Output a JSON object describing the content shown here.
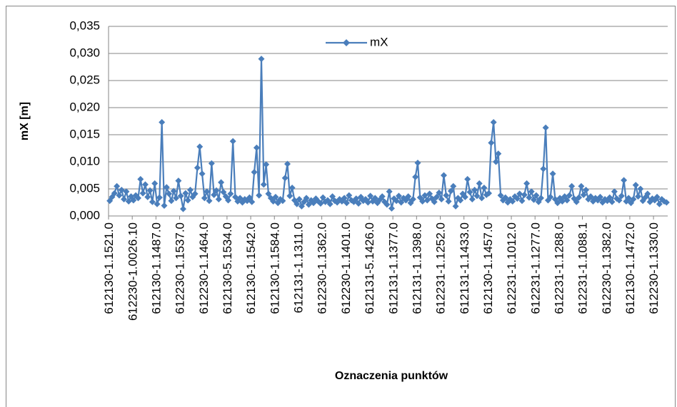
{
  "chart_data": {
    "type": "line",
    "y_label": "mX [m]",
    "x_label": "Oznaczenia punktów",
    "categories": [
      "612130-1.1521.0",
      null,
      null,
      null,
      null,
      null,
      null,
      null,
      null,
      null,
      "612230-1.0026.10",
      null,
      null,
      null,
      null,
      null,
      null,
      null,
      null,
      null,
      "612130-1.1487.0",
      null,
      null,
      null,
      null,
      null,
      null,
      null,
      null,
      null,
      "612230-1.1537.0",
      null,
      null,
      null,
      null,
      null,
      null,
      null,
      null,
      null,
      "612230-1.1464.0",
      null,
      null,
      null,
      null,
      null,
      null,
      null,
      null,
      null,
      "612130-5.1534.0",
      null,
      null,
      null,
      null,
      null,
      null,
      null,
      null,
      null,
      "612130-1.1542.0",
      null,
      null,
      null,
      null,
      null,
      null,
      null,
      null,
      null,
      "612130-1.1584.0",
      null,
      null,
      null,
      null,
      null,
      null,
      null,
      null,
      null,
      "612131-1.1311.0",
      null,
      null,
      null,
      null,
      null,
      null,
      null,
      null,
      null,
      "612230-1.1362.0",
      null,
      null,
      null,
      null,
      null,
      null,
      null,
      null,
      null,
      "612230-1.1401.0",
      null,
      null,
      null,
      null,
      null,
      null,
      null,
      null,
      null,
      "612131-5.1426.0",
      null,
      null,
      null,
      null,
      null,
      null,
      null,
      null,
      null,
      "612131-1.1377.0",
      null,
      null,
      null,
      null,
      null,
      null,
      null,
      null,
      null,
      "612131-1.1398.0",
      null,
      null,
      null,
      null,
      null,
      null,
      null,
      null,
      null,
      "612231-1.1252.0",
      null,
      null,
      null,
      null,
      null,
      null,
      null,
      null,
      null,
      "612131-1.1433.0",
      null,
      null,
      null,
      null,
      null,
      null,
      null,
      null,
      null,
      "612130-1.1457.0",
      null,
      null,
      null,
      null,
      null,
      null,
      null,
      null,
      null,
      "612231-1.1012.0",
      null,
      null,
      null,
      null,
      null,
      null,
      null,
      null,
      null,
      "612231-1.1277.0",
      null,
      null,
      null,
      null,
      null,
      null,
      null,
      null,
      null,
      "612231-1.1288.0",
      null,
      null,
      null,
      null,
      null,
      null,
      null,
      null,
      null,
      "612231-1.1088.1",
      null,
      null,
      null,
      null,
      null,
      null,
      null,
      null,
      null,
      "612230-1.1382.0",
      null,
      null,
      null,
      null,
      null,
      null,
      null,
      null,
      null,
      "612130-1.1472.0",
      null,
      null,
      null,
      null,
      null,
      null,
      null,
      null,
      null,
      "612230-1.1330.0",
      null,
      null,
      null,
      null,
      null
    ],
    "series": [
      {
        "name": "mX",
        "color": "#4a7ebb",
        "values": [
          0.0028,
          0.0035,
          0.0042,
          0.0055,
          0.0038,
          0.0048,
          0.0031,
          0.0045,
          0.0027,
          0.0036,
          0.0029,
          0.0038,
          0.0033,
          0.0068,
          0.0042,
          0.0058,
          0.0035,
          0.0047,
          0.0026,
          0.006,
          0.0022,
          0.0034,
          0.0173,
          0.0019,
          0.0053,
          0.0041,
          0.0028,
          0.0046,
          0.0033,
          0.0065,
          0.0037,
          0.0013,
          0.0042,
          0.0029,
          0.0048,
          0.0035,
          0.0041,
          0.0089,
          0.0128,
          0.0078,
          0.0033,
          0.0045,
          0.0028,
          0.0097,
          0.0039,
          0.0047,
          0.0031,
          0.0062,
          0.0044,
          0.0036,
          0.0029,
          0.0041,
          0.0138,
          0.0035,
          0.0027,
          0.0033,
          0.0025,
          0.0031,
          0.0028,
          0.0034,
          0.0026,
          0.0081,
          0.0126,
          0.0038,
          0.029,
          0.0058,
          0.0095,
          0.0041,
          0.0033,
          0.0027,
          0.0035,
          0.0024,
          0.0031,
          0.0028,
          0.007,
          0.0096,
          0.0037,
          0.0052,
          0.0029,
          0.0022,
          0.0031,
          0.0018,
          0.0026,
          0.0033,
          0.0021,
          0.0029,
          0.0024,
          0.0032,
          0.0027,
          0.0023,
          0.0034,
          0.0026,
          0.0029,
          0.0022,
          0.0036,
          0.0028,
          0.0025,
          0.0031,
          0.0027,
          0.0033,
          0.0024,
          0.0038,
          0.0029,
          0.0026,
          0.0032,
          0.0023,
          0.0035,
          0.0028,
          0.0031,
          0.0025,
          0.0037,
          0.0027,
          0.0033,
          0.0024,
          0.003,
          0.0036,
          0.0026,
          0.0021,
          0.0045,
          0.0014,
          0.0032,
          0.0028,
          0.0037,
          0.0025,
          0.0033,
          0.0029,
          0.0036,
          0.0024,
          0.0031,
          0.0072,
          0.0098,
          0.0034,
          0.0027,
          0.0038,
          0.0029,
          0.0041,
          0.0032,
          0.0026,
          0.0035,
          0.0043,
          0.0031,
          0.0075,
          0.0038,
          0.0027,
          0.0046,
          0.0055,
          0.0018,
          0.0033,
          0.0029,
          0.0041,
          0.0035,
          0.0068,
          0.0044,
          0.0031,
          0.0048,
          0.0037,
          0.006,
          0.0033,
          0.0052,
          0.0039,
          0.0042,
          0.0135,
          0.0173,
          0.01,
          0.0115,
          0.0038,
          0.0029,
          0.0034,
          0.0025,
          0.0031,
          0.0027,
          0.0036,
          0.0032,
          0.0041,
          0.0028,
          0.0039,
          0.006,
          0.0034,
          0.0045,
          0.003,
          0.0038,
          0.0026,
          0.0033,
          0.0087,
          0.0163,
          0.0029,
          0.0035,
          0.0078,
          0.0031,
          0.0024,
          0.0033,
          0.0027,
          0.0036,
          0.0029,
          0.0038,
          0.0055,
          0.0032,
          0.0026,
          0.0034,
          0.0055,
          0.0039,
          0.0048,
          0.0031,
          0.0036,
          0.0027,
          0.0033,
          0.0029,
          0.0035,
          0.0025,
          0.0031,
          0.0028,
          0.0034,
          0.0026,
          0.0045,
          0.0032,
          0.0029,
          0.0037,
          0.0066,
          0.0027,
          0.0033,
          0.0024,
          0.0031,
          0.0057,
          0.0036,
          0.005,
          0.0028,
          0.0034,
          0.0041,
          0.0026,
          0.0032,
          0.0029,
          0.0035,
          0.0022,
          0.0031,
          0.0027,
          0.0025
        ]
      }
    ],
    "ylim": [
      0,
      0.035
    ],
    "yticks": [
      {
        "value": 0,
        "label": "0,000"
      },
      {
        "value": 0.005,
        "label": "0,005"
      },
      {
        "value": 0.01,
        "label": "0,010"
      },
      {
        "value": 0.015,
        "label": "0,015"
      },
      {
        "value": 0.02,
        "label": "0,020"
      },
      {
        "value": 0.025,
        "label": "0,025"
      },
      {
        "value": 0.03,
        "label": "0,030"
      },
      {
        "value": 0.035,
        "label": "0,035"
      }
    ],
    "grid": true,
    "legend": "top"
  }
}
